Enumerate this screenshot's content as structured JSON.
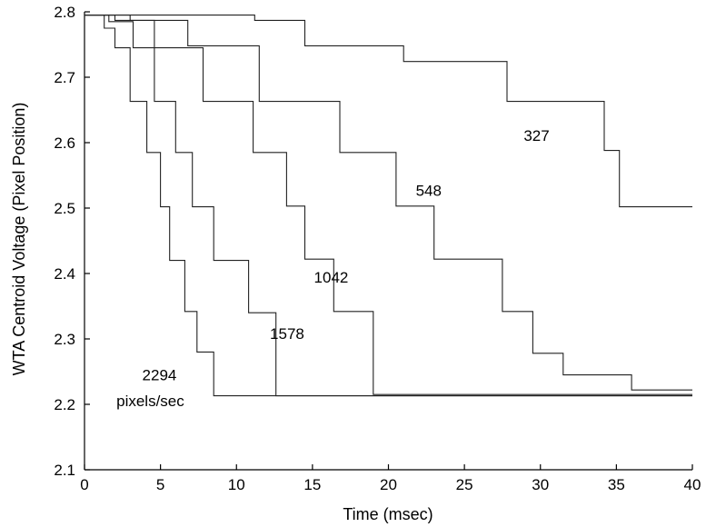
{
  "chart_data": {
    "type": "line",
    "title": "",
    "xlabel": "Time (msec)",
    "ylabel": "WTA Centroid Voltage (Pixel Position)",
    "xlim": [
      0,
      40
    ],
    "ylim": [
      2.1,
      2.8
    ],
    "x_ticks": [
      "0",
      "5",
      "10",
      "15",
      "20",
      "25",
      "30",
      "35",
      "40"
    ],
    "y_ticks": [
      "2.1",
      "2.2",
      "2.3",
      "2.4",
      "2.5",
      "2.6",
      "2.7",
      "2.8"
    ],
    "grid": false,
    "line_color": "#222222",
    "annotations": [
      {
        "text": "327",
        "x": 28.9,
        "y": 2.603
      },
      {
        "text": "548",
        "x": 21.8,
        "y": 2.519
      },
      {
        "text": "1042",
        "x": 15.1,
        "y": 2.386
      },
      {
        "text": "1578",
        "x": 12.2,
        "y": 2.3
      },
      {
        "text": "2294",
        "x": 3.8,
        "y": 2.237
      },
      {
        "text": "pixels/sec",
        "x": 2.1,
        "y": 2.197
      }
    ],
    "series": [
      {
        "x": [
          0,
          11.2,
          11.2,
          14.5,
          14.5,
          21.0,
          21.0,
          27.8,
          27.8,
          34.2,
          34.2,
          35.2,
          35.2,
          40
        ],
        "y": [
          2.795,
          2.795,
          2.787,
          2.787,
          2.748,
          2.748,
          2.724,
          2.724,
          2.663,
          2.663,
          2.588,
          2.588,
          2.502,
          2.502
        ]
      },
      {
        "x": [
          0,
          3.0,
          3.0,
          6.8,
          6.8,
          11.5,
          11.5,
          16.8,
          16.8,
          20.5,
          20.5,
          23.0,
          23.0,
          27.5,
          27.5,
          29.5,
          29.5,
          31.5,
          31.5,
          36.0,
          36.0,
          40
        ],
        "y": [
          2.795,
          2.795,
          2.787,
          2.787,
          2.748,
          2.748,
          2.663,
          2.663,
          2.585,
          2.585,
          2.503,
          2.503,
          2.422,
          2.422,
          2.342,
          2.342,
          2.278,
          2.278,
          2.245,
          2.245,
          2.222,
          2.222
        ]
      },
      {
        "x": [
          0,
          2.0,
          2.0,
          4.6,
          4.6,
          7.8,
          7.8,
          11.1,
          11.1,
          13.3,
          13.3,
          14.5,
          14.5,
          16.4,
          16.4,
          19.0,
          19.0,
          40
        ],
        "y": [
          2.795,
          2.795,
          2.787,
          2.787,
          2.745,
          2.745,
          2.663,
          2.663,
          2.585,
          2.585,
          2.503,
          2.503,
          2.422,
          2.422,
          2.342,
          2.342,
          2.215,
          2.215
        ]
      },
      {
        "x": [
          0,
          1.6,
          1.6,
          3.2,
          3.2,
          4.6,
          4.6,
          6.0,
          6.0,
          7.1,
          7.1,
          8.5,
          8.5,
          10.8,
          10.8,
          12.6,
          12.6,
          40
        ],
        "y": [
          2.795,
          2.795,
          2.785,
          2.785,
          2.745,
          2.745,
          2.663,
          2.663,
          2.585,
          2.585,
          2.502,
          2.502,
          2.42,
          2.42,
          2.34,
          2.34,
          2.213,
          2.213
        ]
      },
      {
        "x": [
          0,
          1.3,
          1.3,
          2.0,
          2.0,
          3.0,
          3.0,
          4.1,
          4.1,
          5.0,
          5.0,
          5.6,
          5.6,
          6.6,
          6.6,
          7.4,
          7.4,
          8.5,
          8.5,
          40
        ],
        "y": [
          2.795,
          2.795,
          2.775,
          2.775,
          2.745,
          2.745,
          2.663,
          2.663,
          2.585,
          2.585,
          2.502,
          2.502,
          2.42,
          2.42,
          2.342,
          2.342,
          2.28,
          2.28,
          2.213,
          2.213
        ]
      }
    ]
  }
}
